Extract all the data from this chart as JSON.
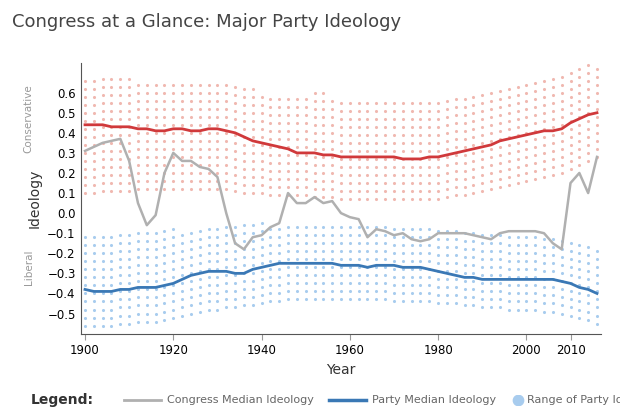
{
  "title": "Congress at a Glance: Major Party Ideology",
  "xlabel": "Year",
  "ylabel": "Ideology",
  "ylim": [
    -0.6,
    0.75
  ],
  "xlim": [
    1899,
    2017
  ],
  "yticks": [
    -0.5,
    -0.4,
    -0.3,
    -0.2,
    -0.1,
    0.0,
    0.1,
    0.2,
    0.3,
    0.4,
    0.5,
    0.6
  ],
  "xticks": [
    1900,
    1920,
    1940,
    1960,
    1980,
    2000,
    2010
  ],
  "conservative_label": "Conservative",
  "liberal_label": "Liberal",
  "rep_color": "#d0393b",
  "dem_color": "#3a78b5",
  "congress_color": "#b0b0b0",
  "rep_dot_color": "#f0b8b0",
  "dem_dot_color": "#a8ccee",
  "rep_median": {
    "years": [
      1900,
      1902,
      1904,
      1906,
      1908,
      1910,
      1912,
      1914,
      1916,
      1918,
      1920,
      1922,
      1924,
      1926,
      1928,
      1930,
      1932,
      1934,
      1936,
      1938,
      1940,
      1942,
      1944,
      1946,
      1948,
      1950,
      1952,
      1954,
      1956,
      1958,
      1960,
      1962,
      1964,
      1966,
      1968,
      1970,
      1972,
      1974,
      1976,
      1978,
      1980,
      1982,
      1984,
      1986,
      1988,
      1990,
      1992,
      1994,
      1996,
      1998,
      2000,
      2002,
      2004,
      2006,
      2008,
      2010,
      2012,
      2014,
      2016
    ],
    "values": [
      0.44,
      0.44,
      0.44,
      0.43,
      0.43,
      0.43,
      0.42,
      0.42,
      0.41,
      0.41,
      0.42,
      0.42,
      0.41,
      0.41,
      0.42,
      0.42,
      0.41,
      0.4,
      0.38,
      0.36,
      0.35,
      0.34,
      0.33,
      0.32,
      0.3,
      0.3,
      0.3,
      0.29,
      0.29,
      0.28,
      0.28,
      0.28,
      0.28,
      0.28,
      0.28,
      0.28,
      0.27,
      0.27,
      0.27,
      0.28,
      0.28,
      0.29,
      0.3,
      0.31,
      0.32,
      0.33,
      0.34,
      0.36,
      0.37,
      0.38,
      0.39,
      0.4,
      0.41,
      0.41,
      0.42,
      0.45,
      0.47,
      0.49,
      0.5
    ]
  },
  "dem_median": {
    "years": [
      1900,
      1902,
      1904,
      1906,
      1908,
      1910,
      1912,
      1914,
      1916,
      1918,
      1920,
      1922,
      1924,
      1926,
      1928,
      1930,
      1932,
      1934,
      1936,
      1938,
      1940,
      1942,
      1944,
      1946,
      1948,
      1950,
      1952,
      1954,
      1956,
      1958,
      1960,
      1962,
      1964,
      1966,
      1968,
      1970,
      1972,
      1974,
      1976,
      1978,
      1980,
      1982,
      1984,
      1986,
      1988,
      1990,
      1992,
      1994,
      1996,
      1998,
      2000,
      2002,
      2004,
      2006,
      2008,
      2010,
      2012,
      2014,
      2016
    ],
    "values": [
      -0.38,
      -0.39,
      -0.39,
      -0.39,
      -0.38,
      -0.38,
      -0.37,
      -0.37,
      -0.37,
      -0.36,
      -0.35,
      -0.33,
      -0.31,
      -0.3,
      -0.29,
      -0.29,
      -0.29,
      -0.3,
      -0.3,
      -0.28,
      -0.27,
      -0.26,
      -0.25,
      -0.25,
      -0.25,
      -0.25,
      -0.25,
      -0.25,
      -0.25,
      -0.26,
      -0.26,
      -0.26,
      -0.27,
      -0.26,
      -0.26,
      -0.26,
      -0.27,
      -0.27,
      -0.27,
      -0.28,
      -0.29,
      -0.3,
      -0.31,
      -0.32,
      -0.32,
      -0.33,
      -0.33,
      -0.33,
      -0.33,
      -0.33,
      -0.33,
      -0.33,
      -0.33,
      -0.33,
      -0.34,
      -0.35,
      -0.37,
      -0.38,
      -0.4
    ]
  },
  "congress_median": {
    "years": [
      1900,
      1902,
      1904,
      1906,
      1908,
      1910,
      1912,
      1914,
      1916,
      1918,
      1920,
      1922,
      1924,
      1926,
      1928,
      1930,
      1932,
      1934,
      1936,
      1938,
      1940,
      1942,
      1944,
      1946,
      1948,
      1950,
      1952,
      1954,
      1956,
      1958,
      1960,
      1962,
      1964,
      1966,
      1968,
      1970,
      1972,
      1974,
      1976,
      1978,
      1980,
      1982,
      1984,
      1986,
      1988,
      1990,
      1992,
      1994,
      1996,
      1998,
      2000,
      2002,
      2004,
      2006,
      2008,
      2010,
      2012,
      2014,
      2016
    ],
    "values": [
      0.31,
      0.33,
      0.35,
      0.36,
      0.37,
      0.26,
      0.05,
      -0.06,
      -0.01,
      0.2,
      0.3,
      0.26,
      0.26,
      0.23,
      0.22,
      0.18,
      0.0,
      -0.15,
      -0.18,
      -0.12,
      -0.11,
      -0.07,
      -0.05,
      0.1,
      0.05,
      0.05,
      0.08,
      0.05,
      0.06,
      0.0,
      -0.02,
      -0.03,
      -0.12,
      -0.08,
      -0.09,
      -0.11,
      -0.1,
      -0.13,
      -0.14,
      -0.13,
      -0.1,
      -0.1,
      -0.1,
      -0.1,
      -0.11,
      -0.12,
      -0.13,
      -0.1,
      -0.09,
      -0.09,
      -0.09,
      -0.09,
      -0.1,
      -0.15,
      -0.18,
      0.15,
      0.2,
      0.1,
      0.28
    ]
  },
  "rep_range_years": [
    1900,
    1902,
    1904,
    1906,
    1908,
    1910,
    1912,
    1914,
    1916,
    1918,
    1920,
    1922,
    1924,
    1926,
    1928,
    1930,
    1932,
    1934,
    1936,
    1938,
    1940,
    1942,
    1944,
    1946,
    1948,
    1950,
    1952,
    1954,
    1956,
    1958,
    1960,
    1962,
    1964,
    1966,
    1968,
    1970,
    1972,
    1974,
    1976,
    1978,
    1980,
    1982,
    1984,
    1986,
    1988,
    1990,
    1992,
    1994,
    1996,
    1998,
    2000,
    2002,
    2004,
    2006,
    2008,
    2010,
    2012,
    2014,
    2016
  ],
  "rep_range_low": [
    0.1,
    0.1,
    0.11,
    0.11,
    0.11,
    0.11,
    0.12,
    0.12,
    0.12,
    0.12,
    0.12,
    0.12,
    0.12,
    0.12,
    0.12,
    0.12,
    0.12,
    0.11,
    0.1,
    0.1,
    0.1,
    0.09,
    0.09,
    0.09,
    0.09,
    0.09,
    0.08,
    0.08,
    0.08,
    0.07,
    0.07,
    0.07,
    0.07,
    0.07,
    0.07,
    0.07,
    0.07,
    0.07,
    0.07,
    0.07,
    0.07,
    0.08,
    0.09,
    0.09,
    0.1,
    0.11,
    0.12,
    0.13,
    0.14,
    0.15,
    0.16,
    0.17,
    0.18,
    0.19,
    0.2,
    0.22,
    0.24,
    0.26,
    0.28
  ],
  "rep_range_high": [
    0.65,
    0.65,
    0.64,
    0.64,
    0.64,
    0.63,
    0.63,
    0.62,
    0.61,
    0.61,
    0.62,
    0.62,
    0.62,
    0.61,
    0.61,
    0.61,
    0.61,
    0.6,
    0.6,
    0.59,
    0.58,
    0.57,
    0.57,
    0.57,
    0.56,
    0.56,
    0.56,
    0.56,
    0.55,
    0.55,
    0.54,
    0.54,
    0.54,
    0.54,
    0.54,
    0.54,
    0.54,
    0.54,
    0.54,
    0.54,
    0.55,
    0.55,
    0.56,
    0.57,
    0.58,
    0.59,
    0.6,
    0.61,
    0.62,
    0.63,
    0.64,
    0.65,
    0.66,
    0.67,
    0.68,
    0.7,
    0.72,
    0.74,
    0.76
  ],
  "dem_range_years": [
    1900,
    1902,
    1904,
    1906,
    1908,
    1910,
    1912,
    1914,
    1916,
    1918,
    1920,
    1922,
    1924,
    1926,
    1928,
    1930,
    1932,
    1934,
    1936,
    1938,
    1940,
    1942,
    1944,
    1946,
    1948,
    1950,
    1952,
    1954,
    1956,
    1958,
    1960,
    1962,
    1964,
    1966,
    1968,
    1970,
    1972,
    1974,
    1976,
    1978,
    1980,
    1982,
    1984,
    1986,
    1988,
    1990,
    1992,
    1994,
    1996,
    1998,
    2000,
    2002,
    2004,
    2006,
    2008,
    2010,
    2012,
    2014,
    2016
  ],
  "dem_range_low": [
    -0.56,
    -0.56,
    -0.56,
    -0.56,
    -0.55,
    -0.55,
    -0.54,
    -0.54,
    -0.54,
    -0.53,
    -0.52,
    -0.51,
    -0.5,
    -0.49,
    -0.48,
    -0.48,
    -0.47,
    -0.47,
    -0.46,
    -0.46,
    -0.45,
    -0.44,
    -0.44,
    -0.43,
    -0.43,
    -0.43,
    -0.43,
    -0.43,
    -0.43,
    -0.43,
    -0.43,
    -0.43,
    -0.43,
    -0.43,
    -0.43,
    -0.44,
    -0.44,
    -0.44,
    -0.44,
    -0.44,
    -0.45,
    -0.45,
    -0.45,
    -0.46,
    -0.46,
    -0.47,
    -0.47,
    -0.47,
    -0.48,
    -0.48,
    -0.48,
    -0.48,
    -0.49,
    -0.49,
    -0.5,
    -0.51,
    -0.52,
    -0.53,
    -0.55
  ],
  "dem_range_high": [
    -0.13,
    -0.14,
    -0.14,
    -0.14,
    -0.13,
    -0.13,
    -0.12,
    -0.12,
    -0.12,
    -0.12,
    -0.11,
    -0.11,
    -0.1,
    -0.1,
    -0.09,
    -0.09,
    -0.09,
    -0.09,
    -0.09,
    -0.09,
    -0.08,
    -0.08,
    -0.08,
    -0.08,
    -0.08,
    -0.08,
    -0.08,
    -0.08,
    -0.08,
    -0.08,
    -0.08,
    -0.08,
    -0.08,
    -0.08,
    -0.08,
    -0.09,
    -0.09,
    -0.09,
    -0.09,
    -0.09,
    -0.1,
    -0.1,
    -0.1,
    -0.11,
    -0.11,
    -0.12,
    -0.12,
    -0.13,
    -0.13,
    -0.13,
    -0.13,
    -0.13,
    -0.13,
    -0.13,
    -0.14,
    -0.16,
    -0.17,
    -0.18,
    -0.2
  ],
  "background_color": "#ffffff",
  "title_fontsize": 13,
  "axis_fontsize": 10,
  "tick_fontsize": 8.5
}
